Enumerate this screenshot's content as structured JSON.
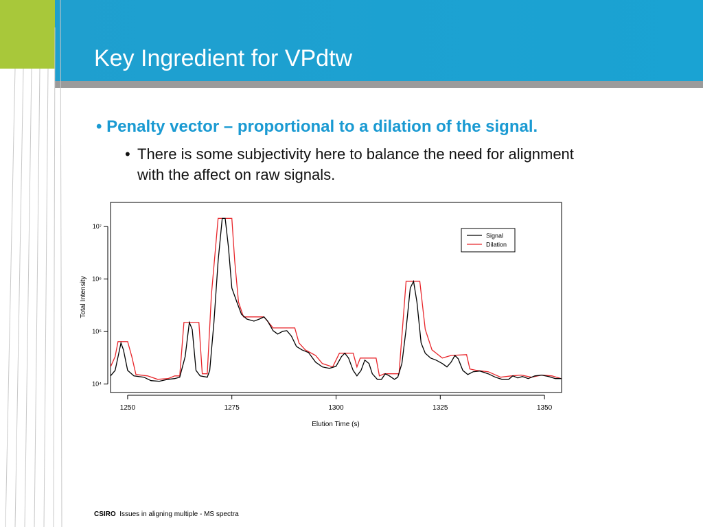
{
  "header": {
    "title": "Key Ingredient for VPdtw"
  },
  "bullets": [
    {
      "text": "Penalty vector – proportional to a dilation of the signal.",
      "sub": [
        "There is some subjectivity here to balance the need for alignment with the affect on raw signals."
      ]
    }
  ],
  "chart_data": {
    "type": "line",
    "x_label": "Elution Time (s)",
    "y_label": "Total Intensity",
    "xlim": [
      1245.9,
      1354.1
    ],
    "ylim": [
      6900,
      28800000
    ],
    "ylog": true,
    "xticks": [
      1250,
      1275,
      1300,
      1325,
      1350
    ],
    "yticks": [
      {
        "value": 10000,
        "label": "10⁴"
      },
      {
        "value": 100000,
        "label": "10⁵"
      },
      {
        "value": 1000000,
        "label": "10⁶"
      },
      {
        "value": 10000000,
        "label": "10⁷"
      }
    ],
    "legend": "upper right",
    "series": [
      {
        "name": "Signal",
        "color": "#000000",
        "x": [
          1245.9,
          1247.0,
          1248.4,
          1249.0,
          1250,
          1251.5,
          1253.9,
          1255.6,
          1257.6,
          1259.7,
          1261.3,
          1262.5,
          1263.8,
          1264.8,
          1265.5,
          1266.4,
          1267.4,
          1269.1,
          1269.7,
          1270.7,
          1271.7,
          1272.7,
          1273.4,
          1274.2,
          1275,
          1276.2,
          1277.3,
          1278.6,
          1280.3,
          1281.6,
          1282.7,
          1283.6,
          1284.9,
          1286.0,
          1287.2,
          1288.2,
          1289.3,
          1290.5,
          1291.8,
          1293.4,
          1295.1,
          1296.7,
          1298.4,
          1300,
          1301.3,
          1302.1,
          1303.0,
          1304.1,
          1305.0,
          1306.0,
          1306.9,
          1307.9,
          1308.7,
          1309.9,
          1310.9,
          1311.8,
          1312.8,
          1314.0,
          1314.8,
          1315.8,
          1316.8,
          1317.8,
          1318.6,
          1319.4,
          1320.4,
          1321.4,
          1322.7,
          1324.0,
          1325.5,
          1326.6,
          1327.6,
          1328.5,
          1329.3,
          1330.4,
          1331.6,
          1332.9,
          1334.5,
          1336.5,
          1338.2,
          1339.8,
          1341.4,
          1342.4,
          1343.6,
          1344.7,
          1346.1,
          1347.7,
          1349.3,
          1351.0,
          1352.6,
          1354.0
        ],
        "values": [
          14300,
          18200,
          60600,
          44900,
          18200,
          14300,
          13500,
          11600,
          11300,
          12300,
          12700,
          13500,
          33300,
          149000,
          110000,
          18200,
          14300,
          13500,
          18200,
          149000,
          2200000,
          14300000,
          14300000,
          4000000,
          675000,
          366000,
          213000,
          173000,
          158000,
          173000,
          190000,
          158000,
          104000,
          89500,
          101000,
          104000,
          81800,
          52000,
          44900,
          39800,
          26100,
          21200,
          19900,
          21800,
          33300,
          38700,
          31300,
          18200,
          14300,
          18200,
          28600,
          24600,
          15700,
          12300,
          12300,
          15700,
          14300,
          12300,
          13500,
          24600,
          110000,
          675000,
          905000,
          366000,
          60600,
          38700,
          31300,
          28600,
          24600,
          21200,
          26100,
          35100,
          30300,
          18200,
          15200,
          17200,
          17700,
          15700,
          13500,
          12300,
          12300,
          14300,
          13100,
          13900,
          12700,
          14300,
          14800,
          13900,
          12700,
          12700
        ]
      },
      {
        "name": "Dilation",
        "color": "#e8262b",
        "x": [
          1245.9,
          1247.0,
          1247.7,
          1250,
          1251.0,
          1252.0,
          1254.8,
          1257.2,
          1259.7,
          1261.3,
          1262.5,
          1263.5,
          1267.1,
          1267.9,
          1269.1,
          1270.1,
          1271.7,
          1275,
          1275.7,
          1276.6,
          1277.8,
          1282.7,
          1284.9,
          1290.1,
          1291.1,
          1292.6,
          1295.1,
          1296.7,
          1299.2,
          1300.8,
          1304.1,
          1305.0,
          1305.8,
          1309.6,
          1310.4,
          1311.6,
          1315.1,
          1316.8,
          1320.1,
          1321.4,
          1323.0,
          1325.5,
          1327.6,
          1331.3,
          1332.1,
          1333.7,
          1336.5,
          1339.5,
          1342.0,
          1344.4,
          1346.9,
          1349.3,
          1351.8,
          1354.0
        ],
        "values": [
          21200,
          33300,
          64400,
          64400,
          33300,
          15200,
          14300,
          12300,
          12700,
          14300,
          14300,
          149000,
          149000,
          15700,
          15700,
          494000,
          14300000,
          14300000,
          2200000,
          366000,
          190000,
          190000,
          117000,
          117000,
          60600,
          44900,
          35100,
          24600,
          21200,
          38700,
          38700,
          21200,
          31300,
          31300,
          14300,
          15700,
          15700,
          905000,
          905000,
          110000,
          44900,
          31300,
          35100,
          36300,
          19400,
          18200,
          17200,
          13500,
          14300,
          14800,
          13500,
          14800,
          14300,
          12700
        ]
      }
    ]
  },
  "footer": {
    "org": "CSIRO",
    "text": "Issues in aligning multiple - MS spectra"
  }
}
